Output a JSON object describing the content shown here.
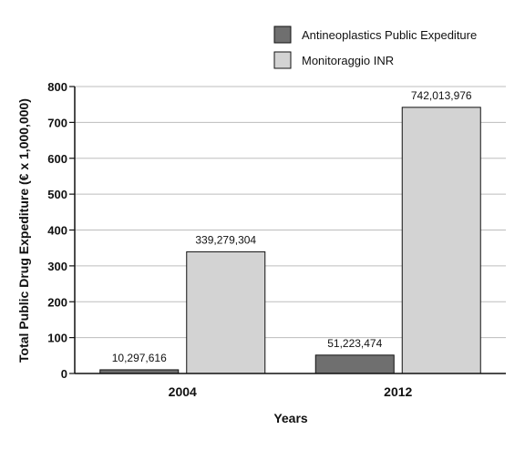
{
  "chart_data": {
    "type": "bar",
    "categories": [
      "2004",
      "2012"
    ],
    "series": [
      {
        "name": "Antineoplastics Public Expediture",
        "values": [
          10.297616,
          51.223474
        ],
        "labels": [
          "10,297,616",
          "51,223,474"
        ],
        "color": "#6f6f6f"
      },
      {
        "name": "Monitoraggio INR",
        "values": [
          339.279304,
          742.013976
        ],
        "labels": [
          "339,279,304",
          "742,013,976"
        ],
        "color": "#d3d3d3"
      }
    ],
    "xlabel": "Years",
    "ylabel": "Total Public Drug Expediture (€ x 1,000,000)",
    "ylim": [
      0,
      800
    ],
    "yticks": [
      0,
      100,
      200,
      300,
      400,
      500,
      600,
      700,
      800
    ],
    "grid": true,
    "legend_position": "top-right"
  }
}
